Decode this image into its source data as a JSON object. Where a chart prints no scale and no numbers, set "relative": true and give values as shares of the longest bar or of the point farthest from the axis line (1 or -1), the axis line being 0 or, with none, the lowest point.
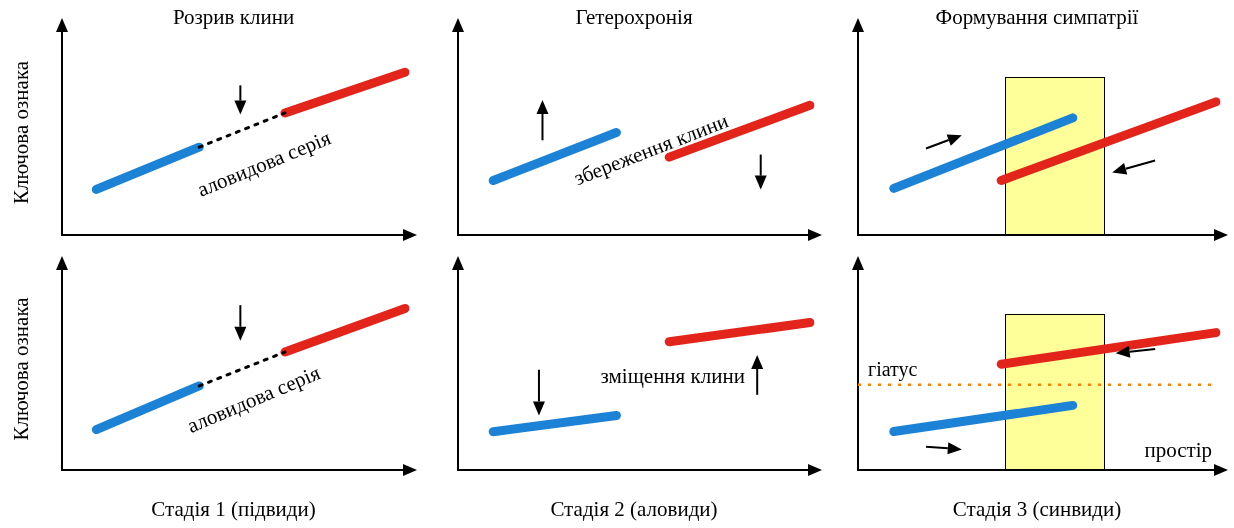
{
  "chart_data": [
    {
      "type": "line",
      "title": "Розрив клини",
      "ylabel": "Ключова ознака",
      "relative": true,
      "marker": "none",
      "categories": [
        null,
        null,
        null,
        null,
        null,
        null,
        null,
        null,
        null,
        null,
        null,
        null,
        null,
        null,
        null,
        null,
        null,
        null,
        null,
        null,
        null
      ],
      "series": [
        {
          "color": "#1b82d6",
          "values": [
            null,
            null,
            0.28,
            null,
            null,
            null,
            null,
            null,
            0.54,
            null,
            null,
            null,
            null,
            null,
            null,
            null,
            null,
            null,
            null,
            null,
            null
          ]
        },
        {
          "color": "#000000",
          "line_style": "dotted",
          "values": [
            null,
            null,
            null,
            null,
            null,
            null,
            null,
            null,
            0.54,
            null,
            null,
            null,
            null,
            0.75,
            null,
            null,
            null,
            null,
            null,
            null,
            null
          ]
        },
        {
          "color": "#e3241b",
          "values": [
            null,
            null,
            null,
            null,
            null,
            null,
            null,
            null,
            null,
            null,
            null,
            null,
            null,
            0.75,
            null,
            null,
            null,
            null,
            null,
            null,
            1.0
          ]
        }
      ],
      "annotations": [
        "аловидова серія"
      ]
    },
    {
      "type": "line",
      "title": "Гетерохронія",
      "relative": true,
      "marker": "none",
      "categories": [
        null,
        null,
        null,
        null,
        null,
        null,
        null,
        null,
        null,
        null,
        null,
        null,
        null,
        null,
        null,
        null,
        null,
        null,
        null,
        null,
        null
      ],
      "series": [
        {
          "color": "#1b82d6",
          "values": [
            null,
            null,
            0.42,
            null,
            null,
            null,
            null,
            null,
            null,
            0.79,
            null,
            null,
            null,
            null,
            null,
            null,
            null,
            null,
            null,
            null,
            null
          ]
        },
        {
          "color": "#e3241b",
          "values": [
            null,
            null,
            null,
            null,
            null,
            null,
            null,
            null,
            null,
            null,
            null,
            null,
            0.6,
            null,
            null,
            null,
            null,
            null,
            null,
            null,
            1.0
          ]
        }
      ],
      "annotations": [
        "збереження клини"
      ]
    },
    {
      "type": "line",
      "title": "Формування симпатрії",
      "relative": true,
      "marker": "none",
      "categories": [
        null,
        null,
        null,
        null,
        null,
        null,
        null,
        null,
        null,
        null,
        null,
        null,
        null,
        null,
        null,
        null,
        null,
        null,
        null,
        null,
        null
      ],
      "series": [
        {
          "color": "#1b82d6",
          "values": [
            null,
            null,
            0.35,
            null,
            null,
            null,
            null,
            null,
            null,
            null,
            null,
            null,
            0.88,
            null,
            null,
            null,
            null,
            null,
            null,
            null,
            null
          ]
        },
        {
          "color": "#e3241b",
          "values": [
            null,
            null,
            null,
            null,
            null,
            null,
            null,
            null,
            0.41,
            null,
            null,
            null,
            null,
            null,
            null,
            null,
            null,
            null,
            null,
            null,
            1.0
          ]
        }
      ]
    },
    {
      "type": "line",
      "ylabel": "Ключова ознака",
      "relative": true,
      "marker": "none",
      "categories": [
        null,
        null,
        null,
        null,
        null,
        null,
        null,
        null,
        null,
        null,
        null,
        null,
        null,
        null,
        null,
        null,
        null,
        null,
        null,
        null,
        null
      ],
      "series": [
        {
          "color": "#1b82d6",
          "values": [
            null,
            null,
            0.25,
            null,
            null,
            null,
            null,
            null,
            0.52,
            null,
            null,
            null,
            null,
            null,
            null,
            null,
            null,
            null,
            null,
            null,
            null
          ]
        },
        {
          "color": "#000000",
          "line_style": "dotted",
          "values": [
            null,
            null,
            null,
            null,
            null,
            null,
            null,
            null,
            0.52,
            null,
            null,
            null,
            null,
            0.73,
            null,
            null,
            null,
            null,
            null,
            null,
            null
          ]
        },
        {
          "color": "#e3241b",
          "values": [
            null,
            null,
            null,
            null,
            null,
            null,
            null,
            null,
            null,
            null,
            null,
            null,
            null,
            0.73,
            null,
            null,
            null,
            null,
            null,
            null,
            1.0
          ]
        }
      ],
      "annotations": [
        "аловидова серія",
        "Стадія 1 (підвиди)"
      ]
    },
    {
      "type": "line",
      "relative": true,
      "marker": "none",
      "categories": [
        null,
        null,
        null,
        null,
        null,
        null,
        null,
        null,
        null,
        null,
        null,
        null,
        null,
        null,
        null,
        null,
        null,
        null,
        null,
        null,
        null
      ],
      "series": [
        {
          "color": "#1b82d6",
          "values": [
            null,
            null,
            0.26,
            null,
            null,
            null,
            null,
            null,
            null,
            0.37,
            null,
            null,
            null,
            null,
            null,
            null,
            null,
            null,
            null,
            null,
            null
          ]
        },
        {
          "color": "#e3241b",
          "values": [
            null,
            null,
            null,
            null,
            null,
            null,
            null,
            null,
            null,
            null,
            null,
            null,
            0.87,
            null,
            null,
            null,
            null,
            null,
            null,
            null,
            1.0
          ]
        }
      ],
      "annotations": [
        "зміщення клини",
        "Стадія 2 (аловиди)"
      ]
    },
    {
      "type": "line",
      "xlabel": "простір",
      "relative": true,
      "marker": "none",
      "categories": [
        null,
        null,
        null,
        null,
        null,
        null,
        null,
        null,
        null,
        null,
        null,
        null,
        null,
        null,
        null,
        null,
        null,
        null,
        null,
        null,
        null
      ],
      "series": [
        {
          "color": "#1b82d6",
          "values": [
            null,
            null,
            0.28,
            null,
            null,
            null,
            null,
            null,
            null,
            null,
            null,
            null,
            0.47,
            null,
            null,
            null,
            null,
            null,
            null,
            null,
            null
          ]
        },
        {
          "color": "#e3241b",
          "values": [
            null,
            null,
            null,
            null,
            null,
            null,
            null,
            null,
            0.77,
            null,
            null,
            null,
            null,
            null,
            null,
            null,
            null,
            null,
            null,
            null,
            1.0
          ]
        }
      ],
      "ref_lines": [
        {
          "axis": "y",
          "value": 0.62,
          "label": "гіатус",
          "color": "#ff8000",
          "line_style": "dotted"
        }
      ],
      "annotations": [
        "Стадія 3 (синвиди)"
      ]
    }
  ]
}
